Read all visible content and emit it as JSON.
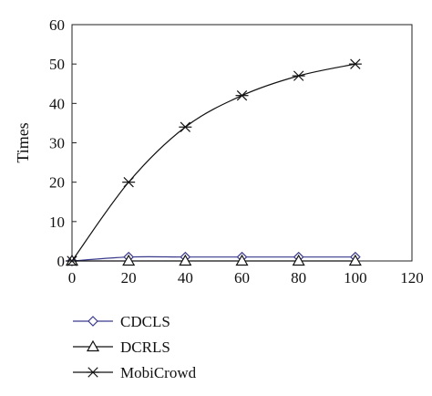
{
  "chart_data": {
    "type": "line",
    "title": "",
    "xlabel": "",
    "ylabel": "Times",
    "xlim": [
      0,
      120
    ],
    "ylim": [
      0,
      60
    ],
    "x_ticks": [
      0,
      20,
      40,
      60,
      80,
      100,
      120
    ],
    "y_ticks": [
      0,
      10,
      20,
      30,
      40,
      50,
      60
    ],
    "grid": false,
    "legend_position": "bottom-left",
    "series": [
      {
        "name": "CDCLS",
        "marker": "diamond",
        "color": "#3a3a8c",
        "points": [
          [
            0,
            0
          ],
          [
            20,
            1
          ],
          [
            40,
            1
          ],
          [
            60,
            1
          ],
          [
            80,
            1
          ],
          [
            100,
            1
          ]
        ]
      },
      {
        "name": "DCRLS",
        "marker": "triangle",
        "color": "#111111",
        "points": [
          [
            0,
            0
          ],
          [
            20,
            0
          ],
          [
            40,
            0
          ],
          [
            60,
            0
          ],
          [
            80,
            0
          ],
          [
            100,
            0
          ]
        ]
      },
      {
        "name": "MobiCrowd",
        "marker": "asterisk",
        "color": "#111111",
        "points": [
          [
            0,
            0
          ],
          [
            20,
            20
          ],
          [
            40,
            34
          ],
          [
            60,
            42
          ],
          [
            80,
            47
          ],
          [
            100,
            50
          ]
        ]
      }
    ]
  }
}
